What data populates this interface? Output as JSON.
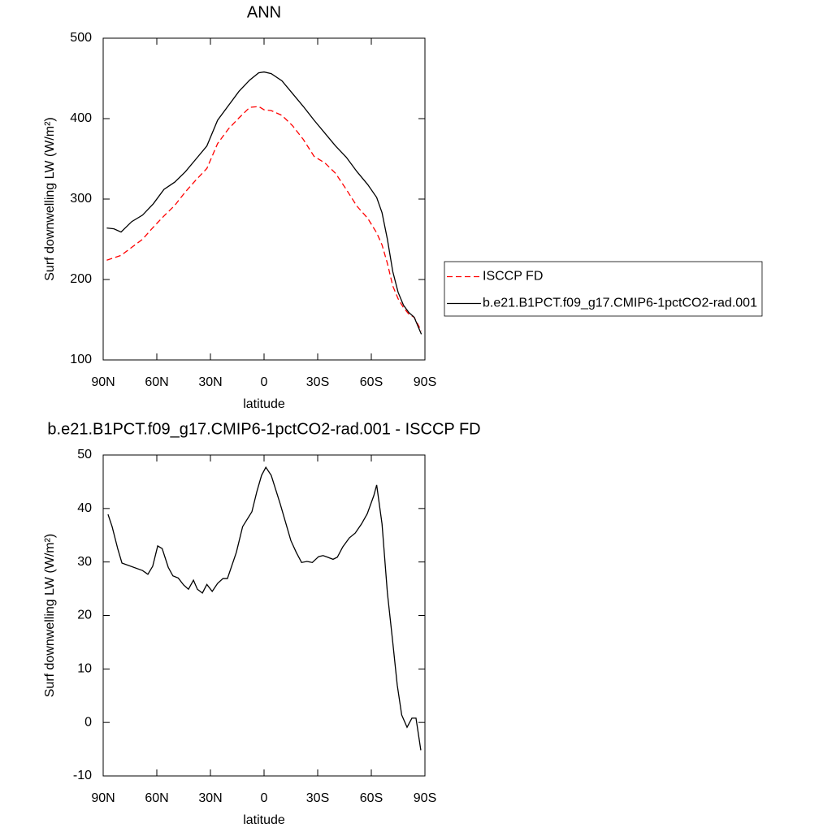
{
  "chart_data": [
    {
      "type": "line",
      "title": "ANN",
      "xlabel": "latitude",
      "ylabel": "Surf downwelling LW (W/m²)",
      "x": [
        88,
        84,
        80,
        74,
        68,
        62,
        56,
        50,
        44,
        38,
        32,
        26,
        20,
        14,
        8,
        3,
        0,
        -4,
        -10,
        -16,
        -22,
        -28,
        -34,
        -40,
        -46,
        -52,
        -58,
        -63,
        -66,
        -69,
        -72,
        -75,
        -78,
        -81,
        -84,
        -88
      ],
      "series": [
        {
          "name": "ISCCP FD",
          "color": "#ff0000",
          "dashed": true,
          "values": [
            224,
            227,
            230,
            240,
            250,
            265,
            279,
            292,
            309,
            324,
            338,
            369,
            387,
            401,
            414,
            415,
            411,
            410,
            404,
            391,
            374,
            353,
            345,
            332,
            312,
            291,
            276,
            258,
            243,
            220,
            192,
            176,
            165,
            157,
            153,
            136
          ]
        },
        {
          "name": "b.e21.B1PCT.f09_g17.CMIP6-1pctCO2-rad.001",
          "color": "#000000",
          "dashed": false,
          "values": [
            264,
            263,
            259,
            272,
            280,
            294,
            312,
            321,
            334,
            350,
            366,
            398,
            416,
            434,
            448,
            457,
            458,
            456,
            447,
            431,
            415,
            398,
            382,
            366,
            352,
            334,
            318,
            302,
            283,
            250,
            210,
            184,
            168,
            159,
            153,
            132
          ]
        }
      ],
      "xlim": [
        90,
        -90
      ],
      "xticks": [
        {
          "value": 90,
          "label": "90N"
        },
        {
          "value": 60,
          "label": "60N"
        },
        {
          "value": 30,
          "label": "30N"
        },
        0,
        {
          "value": -30,
          "label": "30S"
        },
        {
          "value": -60,
          "label": "60S"
        },
        {
          "value": -90,
          "label": "90S"
        }
      ],
      "ylim": [
        100,
        500
      ],
      "yticks": [
        100,
        200,
        300,
        400,
        500
      ],
      "legend": "right"
    },
    {
      "type": "line",
      "title": "b.e21.B1PCT.f09_g17.CMIP6-1pctCO2-rad.001 - ISCCP FD",
      "xlabel": "latitude",
      "ylabel": "Surf downwelling LW (W/m²)",
      "x": [
        87.3,
        85,
        81.8,
        79.5,
        68,
        65,
        62.3,
        59.5,
        57,
        53.6,
        51,
        48,
        45,
        42.3,
        39.5,
        37.3,
        34.5,
        32,
        29,
        26,
        23,
        20.5,
        15.5,
        12,
        6.8,
        4,
        1.4,
        -1,
        -4,
        -9,
        -15,
        -18,
        -21,
        -24,
        -27,
        -30.5,
        -33,
        -35.5,
        -38.6,
        -41,
        -44,
        -47.7,
        -51,
        -54.5,
        -57.7,
        -61.4,
        -63,
        -66,
        -69,
        -72,
        -74.5,
        -77,
        -80,
        -82.7,
        -85,
        -87.7
      ],
      "series": [
        {
          "color": "#000000",
          "dashed": false,
          "values": [
            38.9,
            36.6,
            32.4,
            29.8,
            28.4,
            27.7,
            29.2,
            33,
            32.5,
            29,
            27.4,
            27,
            25.7,
            24.9,
            26.6,
            24.9,
            24.2,
            25.8,
            24.5,
            26,
            26.9,
            26.9,
            31.8,
            36.6,
            39.4,
            43.2,
            46.2,
            47.7,
            46.2,
            40.9,
            34,
            31.8,
            29.9,
            30.1,
            29.9,
            31,
            31.2,
            30.9,
            30.5,
            30.9,
            32.8,
            34.5,
            35.4,
            37.1,
            39,
            42.4,
            44.4,
            37.1,
            24.2,
            15,
            7,
            1.4,
            -0.9,
            0.8,
            0.8,
            -5.2
          ]
        }
      ],
      "xlim": [
        90,
        -90
      ],
      "xticks": [
        {
          "value": 90,
          "label": "90N"
        },
        {
          "value": 60,
          "label": "60N"
        },
        {
          "value": 30,
          "label": "30N"
        },
        0,
        {
          "value": -30,
          "label": "30S"
        },
        {
          "value": -60,
          "label": "60S"
        },
        {
          "value": -90,
          "label": "90S"
        }
      ],
      "ylim": [
        -10,
        50
      ],
      "yticks": [
        -10,
        0,
        10,
        20,
        30,
        40,
        50
      ]
    }
  ]
}
